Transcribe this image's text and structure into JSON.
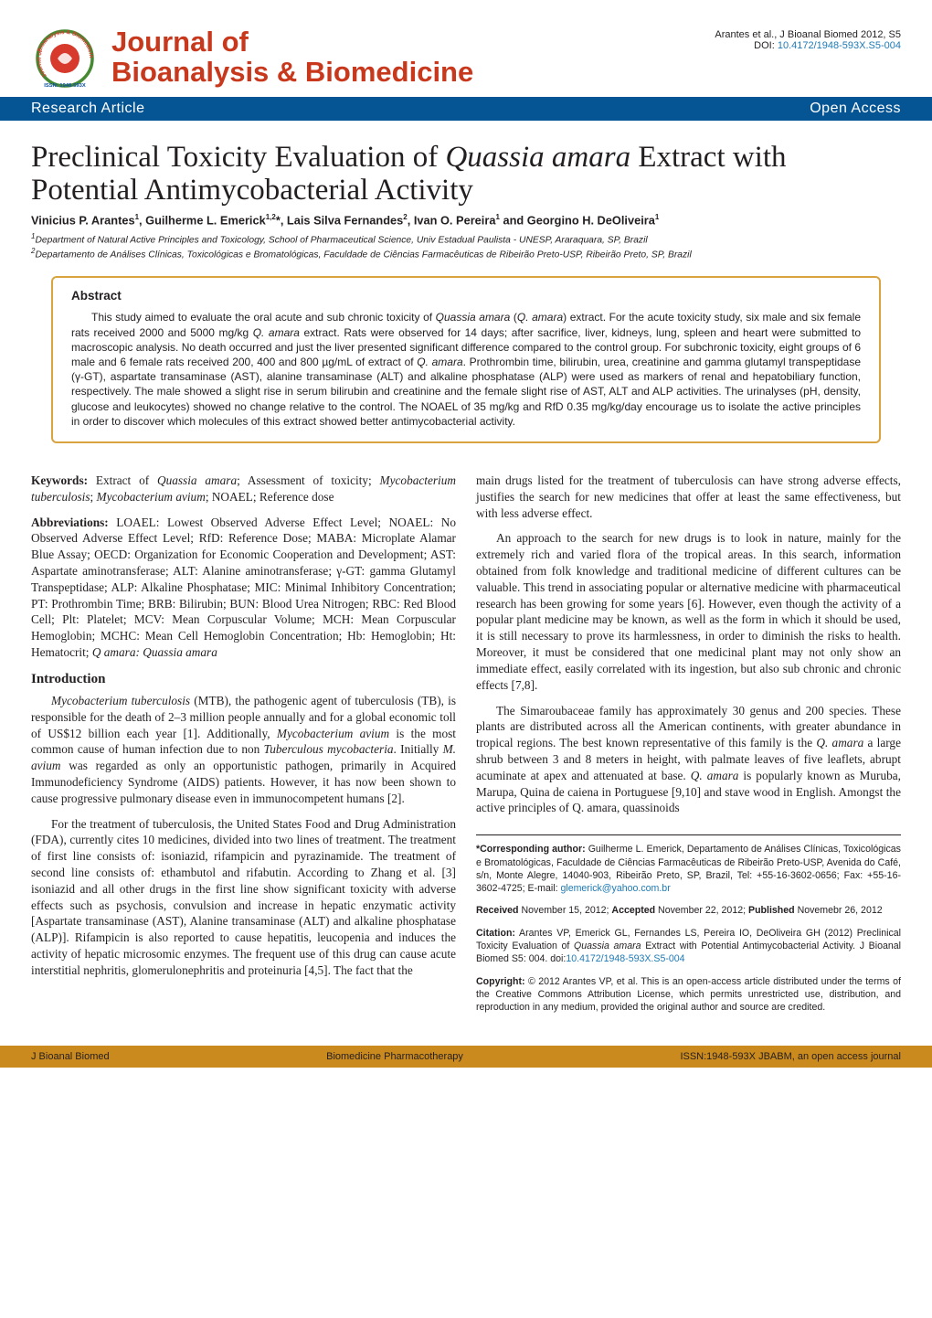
{
  "header": {
    "journal_line1": "Journal of",
    "journal_line2": "Bioanalysis & Biomedicine",
    "logo": {
      "outer_text_top": "Bioanalysis & Biomedicine",
      "outer_text_left": "Journal of",
      "issn_text": "ISSN: 1948-593X",
      "outer_ring_color": "#458a32",
      "inner_circle_color": "#d73a2c",
      "text_color": "#d73a2c",
      "issn_color": "#0a50a1"
    },
    "attribution_author": "Arantes et al., J Bioanal Biomed 2012, S5",
    "doi_label": "DOI: ",
    "doi_link": "10.4172/1948-593X.S5-004"
  },
  "banner": {
    "left": "Research Article",
    "right": "Open Access",
    "background_color": "#055493",
    "text_color": "#ffffff"
  },
  "article": {
    "title_plain": "Preclinical Toxicity Evaluation of ",
    "title_italic": "Quassia amara",
    "title_tail": " Extract with Potential Antimycobacterial Activity",
    "authors_html": "Vinicius P. Arantes<sup>1</sup>, Guilherme L. Emerick<sup>1,2</sup>*, Lais Silva Fernandes<sup>2</sup>, Ivan O. Pereira<sup>1</sup> and Georgino H. DeOliveira<sup>1</sup>",
    "affiliations": [
      "<sup>1</sup>Department of Natural Active Principles and Toxicology, School of Pharmaceutical Science, Univ Estadual Paulista - UNESP, Araraquara, SP, Brazil",
      "<sup>2</sup>Departamento de Análises Clínicas, Toxicológicas e Bromatológicas, Faculdade de Ciências Farmacêuticas de Ribeirão Preto-USP, Ribeirão Preto, SP, Brazil"
    ]
  },
  "abstract": {
    "heading": "Abstract",
    "body_html": "This study aimed to evaluate the oral acute and sub chronic toxicity of <span class='italic'>Quassia amara</span> (<span class='italic'>Q. amara</span>) extract. For the acute toxicity study, six male and six female rats received 2000 and 5000 mg/kg <span class='italic'>Q. amara</span> extract. Rats were observed for 14 days; after sacrifice, liver, kidneys, lung, spleen and heart were submitted to macroscopic analysis. No death occurred and just the liver presented significant difference compared to the control group. For subchronic toxicity, eight groups of 6 male and 6 female rats received 200, 400 and 800 µg/mL of extract of <span class='italic'>Q. amara</span>. Prothrombin time, bilirubin, urea, creatinine and gamma glutamyl transpeptidase (γ-GT), aspartate transaminase (AST), alanine transaminase (ALT) and alkaline phosphatase (ALP) were used as markers of renal and hepatobiliary function, respectively. The male showed a slight rise in serum bilirubin and creatinine and the female slight rise of AST, ALT and ALP activities. The urinalyses (pH, density, glucose and leukocytes) showed no change relative to the control. The NOAEL of 35 mg/kg and RfD 0.35 mg/kg/day encourage us to isolate the active principles in order to discover which molecules of this extract showed better antimycobacterial activity.",
    "border_color": "#d9a340"
  },
  "body": {
    "keywords_label": "Keywords:",
    "keywords_text": " Extract of <span class='italic'>Quassia amara</span>; Assessment of toxicity; <span class='italic'>Mycobacterium tuberculosis</span>; <span class='italic'>Mycobacterium avium</span>; NOAEL; Reference dose",
    "abbrev_label": "Abbreviations:",
    "abbrev_text": " LOAEL: Lowest Observed Adverse Effect Level; NOAEL: No Observed Adverse Effect Level; RfD: Reference Dose; MABA: Microplate Alamar Blue Assay; OECD: Organization for Economic Cooperation and Development; AST: Aspartate aminotransferase; ALT: Alanine aminotransferase; γ-GT: gamma Glutamyl Transpeptidase; ALP: Alkaline Phosphatase; MIC: Minimal Inhibitory Concentration; PT: Prothrombin Time; BRB: Bilirubin; BUN: Blood Urea Nitrogen; RBC: Red Blood Cell; Plt: Platelet; MCV: Mean Corpuscular Volume; MCH: Mean Corpuscular Hemoglobin; MCHC: Mean Cell Hemoglobin Concentration; Hb: Hemoglobin; Ht: Hematocrit; <span class='italic'>Q amara: Quassia amara</span>",
    "intro_heading": "Introduction",
    "intro_paras": [
      "<span class='italic'>Mycobacterium tuberculosis</span> (MTB), the pathogenic agent of tuberculosis (TB), is responsible for the death of 2–3 million people annually and for a global economic toll of US$12 billion each year [1]. Additionally, <span class='italic'>Mycobacterium avium</span> is the most common cause of human infection due to non <span class='italic'>Tuberculous mycobacteria</span>. Initially <span class='italic'>M. avium</span> was regarded as only an opportunistic pathogen, primarily in Acquired Immunodeficiency Syndrome (AIDS) patients. However, it has now been shown to cause progressive pulmonary disease even in immunocompetent humans [2].",
      "For the treatment of tuberculosis, the United States Food and Drug Administration (FDA), currently cites 10 medicines, divided into two lines of treatment. The treatment of first line consists of: isoniazid, rifampicin and pyrazinamide. The treatment of second line consists of: ethambutol and rifabutin. According to Zhang et al. [3] isoniazid and all other drugs in the first line show significant toxicity with adverse effects such as psychosis, convulsion and increase in hepatic enzymatic activity [Aspartate transaminase (AST), Alanine transaminase (ALT) and alkaline phosphatase (ALP)]. Rifampicin is also reported to cause hepatitis, leucopenia and induces the activity of hepatic microsomic enzymes. The frequent use of this drug can cause acute interstitial nephritis, glomerulonephritis and proteinuria [4,5]. The fact that the"
    ],
    "right_paras": [
      "main drugs listed for the treatment of tuberculosis can have strong adverse effects, justifies the search for new medicines that offer at least the same effectiveness, but with less adverse effect.",
      "An approach to the search for new drugs is to look in nature, mainly for the extremely rich and varied flora of the tropical areas. In this search, information obtained from folk knowledge and traditional medicine of different cultures can be valuable. This trend in associating popular or alternative medicine with pharmaceutical research has been growing for some years [6]. However, even though the activity of a popular plant medicine may be known, as well as the form in which it should be used, it is still necessary to prove its harmlessness, in order to diminish the risks to health. Moreover, it must be considered that one medicinal plant may not only show an immediate effect, easily correlated with its ingestion, but also sub chronic and chronic effects [7,8].",
      "The Simaroubaceae family has approximately 30 genus and 200 species. These plants are distributed across all the American continents, with greater abundance in tropical regions. The best known representative of this family is the <span class='italic'>Q. amara</span> a large shrub between 3 and 8 meters in height, with palmate leaves of five leaflets, abrupt acuminate at apex and attenuated at base. <span class='italic'>Q. amara</span> is popularly known as Muruba, Marupa, Quina de caiena in Portuguese [9,10] and stave wood in English. Amongst the active principles of Q. amara, quassinoids"
    ]
  },
  "correspondence": {
    "corresponding": "<span class='bold'>*Corresponding author:</span> Guilherme L. Emerick, Departamento de Análises Clínicas, Toxicológicas e Bromatológicas, Faculdade de Ciências Farmacêuticas de Ribeirão Preto-USP, Avenida do Café, s/n, Monte Alegre, 14040-903, Ribeirão Preto, SP, Brazil, Tel: +55-16-3602-0656; Fax: +55-16-3602-4725; E-mail: <span class='email-link'>glemerick@yahoo.com.br</span>",
    "dates": "<span class='bold'>Received</span> November 15, 2012; <span class='bold'>Accepted</span> November 22, 2012; <span class='bold'>Published</span> Novemebr 26, 2012",
    "citation": "<span class='bold'>Citation:</span> Arantes VP, Emerick GL, Fernandes LS, Pereira IO, DeOliveira GH (2012) Preclinical Toxicity Evaluation of <span class='italic'>Quassia amara</span> Extract with Potential Antimycobacterial Activity. J Bioanal Biomed S5: 004. doi:<span class='doi-link-small'>10.4172/1948-593X.S5-004</span>",
    "copyright": "<span class='bold'>Copyright:</span> © 2012 Arantes VP, et al. This is an open-access article distributed under the terms of the Creative Commons Attribution License, which permits unrestricted use, distribution, and reproduction in any medium, provided the original author and source are credited."
  },
  "footer": {
    "left": "J Bioanal Biomed",
    "center": "Biomedicine Pharmacotherapy",
    "right": "ISSN:1948-593X JBABM, an open access journal",
    "background_color": "#cb8a1e"
  }
}
